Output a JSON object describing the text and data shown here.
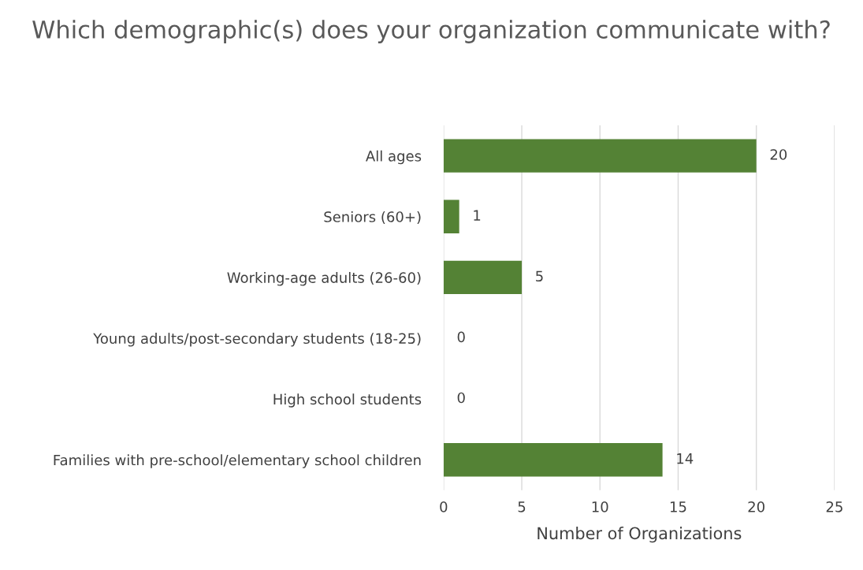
{
  "chart_data": {
    "type": "bar",
    "orientation": "horizontal",
    "title": "Which demographic(s) does your organization communicate with?",
    "xlabel": "Number of Organizations",
    "categories": [
      "All ages",
      "Seniors (60+)",
      "Working-age adults (26-60)",
      "Young adults/post-secondary students (18-25)",
      "High school students",
      "Families with pre-school/elementary school children"
    ],
    "values": [
      20,
      1,
      5,
      0,
      0,
      14
    ],
    "color": "#548235",
    "xlim": [
      0,
      25
    ],
    "xticks": [
      0,
      5,
      10,
      15,
      20,
      25
    ],
    "grid": "x",
    "data_labels": true
  }
}
